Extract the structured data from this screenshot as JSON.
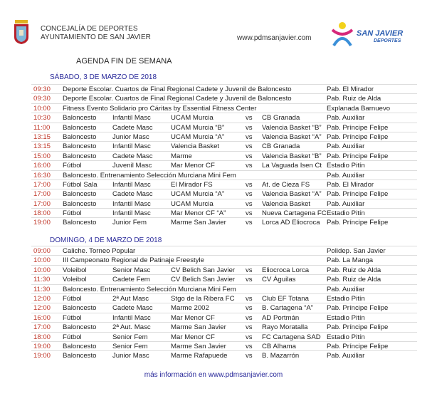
{
  "header": {
    "line1": "CONCEJALÍA DE DEPORTES",
    "line2": "AYUNTAMIENTO DE SAN JAVIER",
    "website": "www.pdmsanjavier.com",
    "logo_text": "SAN JAVIER",
    "logo_sub": "DEPORTES"
  },
  "title": "AGENDA FIN DE SEMANA",
  "days": [
    {
      "label": "SÁBADO, 3 DE MARZO DE 2018",
      "rows": [
        {
          "time": "09:30",
          "event": "Deporte Escolar. Cuartos de Final Regional Cadete y Juvenil de Baloncesto",
          "venue": "Pab. El Mirador"
        },
        {
          "time": "09:30",
          "event": "Deporte Escolar. Cuartos de Final Regional Cadete y Juvenil de Baloncesto",
          "venue": "Pab. Ruiz de Alda"
        },
        {
          "time": "10:00",
          "event": "Fitness Evento Solidario pro Cáritas by Essential Fitness Center",
          "venue": "Explanada Barnuevo"
        },
        {
          "time": "10:30",
          "sport": "Baloncesto",
          "category": "Infantil Masc",
          "team1": "UCAM Murcia",
          "vs": "vs",
          "team2": "CB Granada",
          "venue": "Pab. Auxiliar"
        },
        {
          "time": "11:00",
          "sport": "Baloncesto",
          "category": "Cadete Masc",
          "team1": "UCAM Murcia “B”",
          "vs": "vs",
          "team2": "Valencia Basket “B”",
          "venue": "Pab. Príncipe Felipe"
        },
        {
          "time": "13:15",
          "sport": "Baloncesto",
          "category": "Junior Masc",
          "team1": "UCAM Murcia “A”",
          "vs": "vs",
          "team2": "Valencia Basket “A”",
          "venue": "Pab. Príncipe Felipe"
        },
        {
          "time": "13:15",
          "sport": "Baloncesto",
          "category": "Infantil Masc",
          "team1": "Valencia Basket",
          "vs": "vs",
          "team2": "CB Granada",
          "venue": "Pab. Auxiliar"
        },
        {
          "time": "15:00",
          "sport": "Baloncesto",
          "category": "Cadete Masc",
          "team1": "Marme",
          "vs": "vs",
          "team2": "Valencia Basket “B”",
          "venue": "Pab. Príncipe Felipe"
        },
        {
          "time": "16:00",
          "sport": "Fútbol",
          "category": "Juvenil Masc",
          "team1": "Mar Menor CF",
          "vs": "vs",
          "team2": "La Vaguada Isen Ct",
          "venue": "Estadio Pitín"
        },
        {
          "time": "16:30",
          "event": "Baloncesto. Entrenamiento Selección Murciana Mini Fem",
          "venue": "Pab. Auxiliar"
        },
        {
          "time": "17:00",
          "sport": "Fútbol Sala",
          "category": "Infantil Masc",
          "team1": "El Mirador FS",
          "vs": "vs",
          "team2": "At. de Cieza FS",
          "venue": "Pab. El Mirador"
        },
        {
          "time": "17:00",
          "sport": "Baloncesto",
          "category": "Cadete Masc",
          "team1": "UCAM Murcia “A”",
          "vs": "vs",
          "team2": "Valencia Basket “A”",
          "venue": "Pab. Príncipe Felipe"
        },
        {
          "time": "17:00",
          "sport": "Baloncesto",
          "category": "Infantil Masc",
          "team1": "UCAM Murcia",
          "vs": "vs",
          "team2": "Valencia Basket",
          "venue": "Pab. Auxiliar"
        },
        {
          "time": "18:00",
          "sport": "Fútbol",
          "category": "Infantil Masc",
          "team1": "Mar Menor CF “A”",
          "vs": "vs",
          "team2": "Nueva Cartagena FC",
          "venue": "Estadio Pitín"
        },
        {
          "time": "19:00",
          "sport": "Baloncesto",
          "category": "Junior Fem",
          "team1": "Marme San Javier",
          "vs": "vs",
          "team2": "Lorca AD Eliocroca",
          "venue": "Pab. Príncipe Felipe"
        }
      ]
    },
    {
      "label": "DOMINGO, 4 DE MARZO DE 2018",
      "rows": [
        {
          "time": "09:00",
          "event": "Caliche. Torneo Popular",
          "venue": "Polidep. San Javier"
        },
        {
          "time": "10:00",
          "event": "III Campeonato Regional de Patinaje Freestyle",
          "venue": "Pab. La Manga"
        },
        {
          "time": "10:00",
          "sport": "Voleibol",
          "category": "Senior Masc",
          "team1": "CV Belich San Javier",
          "vs": "vs",
          "team2": "Eliocroca Lorca",
          "venue": "Pab. Ruiz de Alda"
        },
        {
          "time": "11:30",
          "sport": "Voleibol",
          "category": "Cadete Fem",
          "team1": "CV Belich San Javier",
          "vs": "vs",
          "team2": "CV Águilas",
          "venue": "Pab. Ruiz de Alda"
        },
        {
          "time": "11:30",
          "event": "Baloncesto. Entrenamiento Selección Murciana Mini Fem",
          "venue": "Pab. Auxiliar"
        },
        {
          "time": "12:00",
          "sport": "Fútbol",
          "category": "2ª Aut Masc",
          "team1": "Stgo de la Ribera FC",
          "vs": "vs",
          "team2": "Club EF Totana",
          "venue": "Estadio Pitín"
        },
        {
          "time": "12:00",
          "sport": "Baloncesto",
          "category": "Cadete Masc",
          "team1": "Marme 2002",
          "vs": "vs",
          "team2": "B. Cartagena “A”",
          "venue": "Pab. Príncipe Felipe"
        },
        {
          "time": "16:00",
          "sport": "Fútbol",
          "category": "Infantil Masc",
          "team1": "Mar Menor CF",
          "vs": "vs",
          "team2": "AD Portmán",
          "venue": "Estadio Pitín"
        },
        {
          "time": "17:00",
          "sport": "Baloncesto",
          "category": "2ª Aut. Masc",
          "team1": "Marme San Javier",
          "vs": "vs",
          "team2": "Rayo Moratalla",
          "venue": "Pab. Príncipe Felipe"
        },
        {
          "time": "18:00",
          "sport": "Fútbol",
          "category": "Senior Fem",
          "team1": "Mar Menor CF",
          "vs": "vs",
          "team2": "FC Cartagena SAD",
          "venue": "Estadio Pitín"
        },
        {
          "time": "19:00",
          "sport": "Baloncesto",
          "category": "Senior Fem",
          "team1": "Marme San Javier",
          "vs": "vs",
          "team2": "CB Alhama",
          "venue": "Pab. Príncipe Felipe"
        },
        {
          "time": "19:00",
          "sport": "Baloncesto",
          "category": "Junior Masc",
          "team1": "Marme Rafapuede",
          "vs": "vs",
          "team2": "B. Mazarrón",
          "venue": "Pab. Auxiliar"
        }
      ]
    }
  ],
  "footer": "más información en www.pdmsanjavier.com",
  "colors": {
    "time": "#c0392b",
    "heading": "#2a2a9a"
  }
}
